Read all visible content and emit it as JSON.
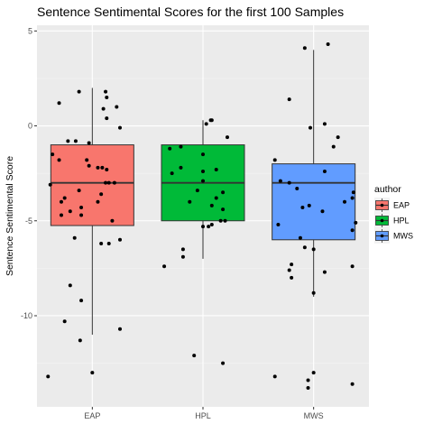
{
  "chart_data": {
    "type": "boxplot",
    "title": "Sentence Sentimental Scores for the first 100 Samples",
    "xlabel": "",
    "ylabel": "Sentence Sentimental Score",
    "ylim": [
      -14.8,
      5.3
    ],
    "yticks": [
      5,
      0,
      -5,
      -10
    ],
    "ytick_labels": [
      "5",
      "0",
      "-5",
      "-10"
    ],
    "categories": [
      "EAP",
      "HPL",
      "MWS"
    ],
    "grid": true,
    "legend": {
      "title": "author",
      "placement": "right",
      "entries": [
        "EAP",
        "HPL",
        "MWS"
      ]
    },
    "colors": {
      "EAP": "#F8766D",
      "HPL": "#00BA38",
      "MWS": "#619CFF",
      "panel": "#EBEBEB",
      "grid": "#FFFFFF",
      "point": "#000000"
    },
    "boxes": [
      {
        "name": "EAP",
        "whisker_low": -11,
        "q1": -5.25,
        "median": -3,
        "q3": -1,
        "whisker_high": 2
      },
      {
        "name": "HPL",
        "whisker_low": -7,
        "q1": -5,
        "median": -3,
        "q3": -1,
        "whisker_high": 0.3
      },
      {
        "name": "MWS",
        "whisker_low": -9,
        "q1": -6,
        "median": -3,
        "q3": -2,
        "whisker_high": 4
      }
    ],
    "points": [
      {
        "name": "EAP",
        "values": [
          {
            "dx": -0.3,
            "y": 1.2
          },
          {
            "dx": -0.12,
            "y": 1.8
          },
          {
            "dx": 0.12,
            "y": 1.8
          },
          {
            "dx": 0.13,
            "y": 1.5
          },
          {
            "dx": 0.22,
            "y": 1.0
          },
          {
            "dx": 0.1,
            "y": 0.9
          },
          {
            "dx": 0.13,
            "y": 0.4
          },
          {
            "dx": 0.25,
            "y": -0.1
          },
          {
            "dx": -0.22,
            "y": -0.8
          },
          {
            "dx": -0.15,
            "y": -0.8
          },
          {
            "dx": -0.03,
            "y": -0.9
          },
          {
            "dx": -0.36,
            "y": -1.5
          },
          {
            "dx": -0.3,
            "y": -1.8
          },
          {
            "dx": -0.05,
            "y": -1.8
          },
          {
            "dx": -0.03,
            "y": -2.1
          },
          {
            "dx": 0.05,
            "y": -2.2
          },
          {
            "dx": 0.09,
            "y": -2.2
          },
          {
            "dx": 0.13,
            "y": -2.3
          },
          {
            "dx": 0.12,
            "y": -3.0
          },
          {
            "dx": 0.15,
            "y": -3.0
          },
          {
            "dx": 0.2,
            "y": -3.0
          },
          {
            "dx": -0.38,
            "y": -3.1
          },
          {
            "dx": -0.12,
            "y": -3.4
          },
          {
            "dx": -0.25,
            "y": -3.8
          },
          {
            "dx": 0.08,
            "y": -3.6
          },
          {
            "dx": -0.28,
            "y": -4.0
          },
          {
            "dx": 0.05,
            "y": -4.0
          },
          {
            "dx": -0.1,
            "y": -4.3
          },
          {
            "dx": -0.2,
            "y": -4.5
          },
          {
            "dx": -0.28,
            "y": -4.7
          },
          {
            "dx": -0.1,
            "y": -4.7
          },
          {
            "dx": 0.18,
            "y": -5.0
          },
          {
            "dx": -0.16,
            "y": -5.9
          },
          {
            "dx": 0.08,
            "y": -6.2
          },
          {
            "dx": 0.15,
            "y": -6.2
          },
          {
            "dx": 0.25,
            "y": -6.0
          },
          {
            "dx": -0.2,
            "y": -8.4
          },
          {
            "dx": -0.1,
            "y": -9.2
          },
          {
            "dx": -0.25,
            "y": -10.3
          },
          {
            "dx": 0.25,
            "y": -10.7
          },
          {
            "dx": -0.11,
            "y": -11.3
          },
          {
            "dx": -0.4,
            "y": -13.2
          },
          {
            "dx": 0.0,
            "y": -13.0
          }
        ]
      },
      {
        "name": "HPL",
        "values": [
          {
            "dx": 0.07,
            "y": 0.3
          },
          {
            "dx": 0.08,
            "y": 0.3
          },
          {
            "dx": 0.03,
            "y": 0.1
          },
          {
            "dx": 0.22,
            "y": -0.6
          },
          {
            "dx": -0.3,
            "y": -1.2
          },
          {
            "dx": -0.2,
            "y": -1.1
          },
          {
            "dx": 0.0,
            "y": -1.5
          },
          {
            "dx": -0.2,
            "y": -2.2
          },
          {
            "dx": 0.0,
            "y": -2.4
          },
          {
            "dx": 0.12,
            "y": -2.3
          },
          {
            "dx": -0.28,
            "y": -2.5
          },
          {
            "dx": 0.0,
            "y": -2.9
          },
          {
            "dx": -0.05,
            "y": -3.4
          },
          {
            "dx": 0.18,
            "y": -3.5
          },
          {
            "dx": 0.12,
            "y": -3.8
          },
          {
            "dx": -0.12,
            "y": -4.0
          },
          {
            "dx": 0.08,
            "y": -4.2
          },
          {
            "dx": 0.18,
            "y": -4.4
          },
          {
            "dx": 0.2,
            "y": -5.0
          },
          {
            "dx": 0.08,
            "y": -5.2
          },
          {
            "dx": 0.0,
            "y": -5.3
          },
          {
            "dx": 0.05,
            "y": -5.3
          },
          {
            "dx": 0.16,
            "y": -5.0
          },
          {
            "dx": -0.18,
            "y": -6.5
          },
          {
            "dx": -0.18,
            "y": -6.9
          },
          {
            "dx": -0.35,
            "y": -7.4
          },
          {
            "dx": -0.08,
            "y": -12.1
          },
          {
            "dx": 0.18,
            "y": -12.5
          }
        ]
      },
      {
        "name": "MWS",
        "values": [
          {
            "dx": 0.13,
            "y": 4.3
          },
          {
            "dx": -0.08,
            "y": 4.1
          },
          {
            "dx": -0.22,
            "y": 1.4
          },
          {
            "dx": 0.1,
            "y": 0.1
          },
          {
            "dx": -0.03,
            "y": -0.1
          },
          {
            "dx": 0.22,
            "y": -0.6
          },
          {
            "dx": 0.18,
            "y": -1.1
          },
          {
            "dx": -0.35,
            "y": -1.8
          },
          {
            "dx": 0.1,
            "y": -2.4
          },
          {
            "dx": -0.3,
            "y": -2.9
          },
          {
            "dx": -0.22,
            "y": -3.0
          },
          {
            "dx": -0.15,
            "y": -3.3
          },
          {
            "dx": 0.36,
            "y": -3.5
          },
          {
            "dx": 0.35,
            "y": -3.8
          },
          {
            "dx": 0.28,
            "y": -4.0
          },
          {
            "dx": -0.04,
            "y": -4.2
          },
          {
            "dx": -0.1,
            "y": -4.3
          },
          {
            "dx": 0.08,
            "y": -4.5
          },
          {
            "dx": -0.32,
            "y": -5.2
          },
          {
            "dx": 0.38,
            "y": -5.1
          },
          {
            "dx": 0.35,
            "y": -5.5
          },
          {
            "dx": -0.12,
            "y": -5.9
          },
          {
            "dx": -0.08,
            "y": -6.4
          },
          {
            "dx": 0.0,
            "y": -6.5
          },
          {
            "dx": -0.2,
            "y": -7.3
          },
          {
            "dx": 0.35,
            "y": -7.4
          },
          {
            "dx": -0.22,
            "y": -7.6
          },
          {
            "dx": -0.2,
            "y": -8.0
          },
          {
            "dx": 0.1,
            "y": -7.7
          },
          {
            "dx": 0.0,
            "y": -8.8
          },
          {
            "dx": -0.35,
            "y": -13.2
          },
          {
            "dx": 0.0,
            "y": -13.0
          },
          {
            "dx": -0.05,
            "y": -13.4
          },
          {
            "dx": -0.05,
            "y": -13.8
          },
          {
            "dx": 0.35,
            "y": -13.6
          }
        ]
      }
    ]
  }
}
